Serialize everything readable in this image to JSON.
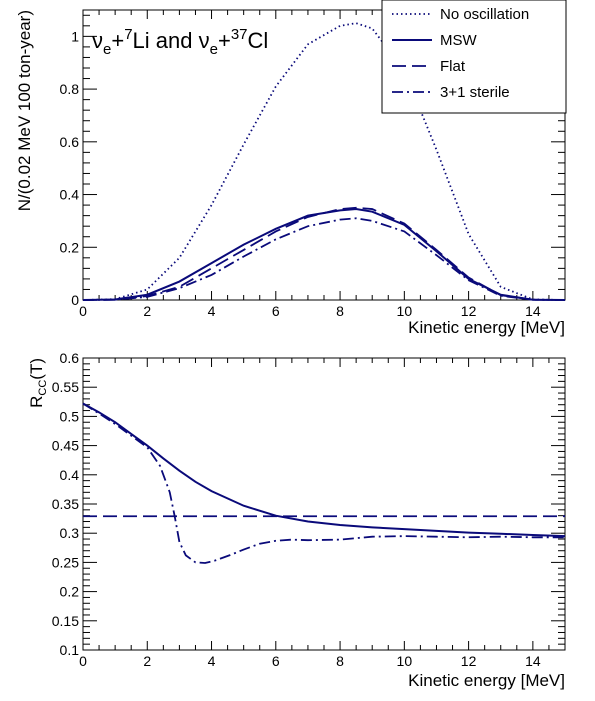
{
  "colors": {
    "line": "#0a0a7a",
    "frame": "#000000",
    "background": "#ffffff"
  },
  "chart_data": [
    {
      "type": "line",
      "title_parts": [
        "ν",
        "e",
        "+",
        "7",
        "Li and ",
        "ν",
        "e",
        "+",
        "37",
        "Cl"
      ],
      "xlabel": "Kinetic energy [MeV]",
      "ylabel": "N/(0.02 MeV 100 ton-year)",
      "xlim": [
        0,
        15
      ],
      "ylim": [
        0,
        1.1
      ],
      "xticks": [
        "0",
        "2",
        "4",
        "6",
        "8",
        "10",
        "12",
        "14"
      ],
      "yticks": [
        "0",
        "0.2",
        "0.4",
        "0.6",
        "0.8",
        "1"
      ],
      "legend_position": "top-right",
      "x": [
        0,
        1,
        2,
        3,
        4,
        5,
        6,
        7,
        8,
        8.5,
        9,
        10,
        11,
        12,
        13,
        14,
        15
      ],
      "series": [
        {
          "name": "No oscillation",
          "style": "dotted",
          "values": [
            0,
            0.003,
            0.04,
            0.16,
            0.36,
            0.59,
            0.81,
            0.97,
            1.04,
            1.05,
            1.03,
            0.87,
            0.57,
            0.25,
            0.05,
            0.002,
            0
          ]
        },
        {
          "name": "MSW",
          "style": "solid",
          "values": [
            0,
            0.002,
            0.02,
            0.07,
            0.14,
            0.21,
            0.27,
            0.32,
            0.34,
            0.345,
            0.335,
            0.285,
            0.185,
            0.08,
            0.02,
            0.001,
            0
          ]
        },
        {
          "name": "Flat",
          "style": "dashed",
          "values": [
            0,
            0.001,
            0.015,
            0.05,
            0.12,
            0.19,
            0.26,
            0.315,
            0.345,
            0.35,
            0.345,
            0.29,
            0.19,
            0.085,
            0.018,
            0.001,
            0
          ]
        },
        {
          "name": "3+1 sterile",
          "style": "dashdot",
          "values": [
            0,
            0.001,
            0.012,
            0.045,
            0.095,
            0.165,
            0.23,
            0.28,
            0.305,
            0.31,
            0.3,
            0.26,
            0.17,
            0.075,
            0.016,
            0.001,
            0
          ]
        }
      ]
    },
    {
      "type": "line",
      "xlabel": "Kinetic energy [MeV]",
      "ylabel_main": "R",
      "ylabel_sub": "CC",
      "ylabel_tail": "(T)",
      "xlim": [
        0,
        15
      ],
      "ylim": [
        0.1,
        0.6
      ],
      "xticks": [
        "0",
        "2",
        "4",
        "6",
        "8",
        "10",
        "12",
        "14"
      ],
      "yticks": [
        "0.1",
        "0.15",
        "0.2",
        "0.25",
        "0.3",
        "0.35",
        "0.4",
        "0.45",
        "0.5",
        "0.55",
        "0.6"
      ],
      "series": [
        {
          "style": "solid",
          "x": [
            0,
            0.5,
            1,
            1.5,
            2,
            2.5,
            3,
            3.5,
            4,
            5,
            6,
            7,
            8,
            9,
            10,
            11,
            12,
            13,
            14,
            15
          ],
          "values": [
            0.522,
            0.507,
            0.49,
            0.47,
            0.45,
            0.428,
            0.407,
            0.388,
            0.372,
            0.347,
            0.33,
            0.32,
            0.314,
            0.31,
            0.307,
            0.304,
            0.301,
            0.299,
            0.297,
            0.295
          ]
        },
        {
          "style": "dashed",
          "x": [
            0,
            15
          ],
          "values": [
            0.329,
            0.329
          ]
        },
        {
          "style": "dashdot",
          "x": [
            0,
            0.5,
            1,
            1.5,
            2,
            2.4,
            2.7,
            2.85,
            3,
            3.2,
            3.5,
            3.8,
            4.1,
            4.6,
            5,
            5.5,
            6,
            6.5,
            7,
            8,
            9,
            10,
            11,
            12,
            13,
            14,
            15
          ],
          "values": [
            0.522,
            0.505,
            0.487,
            0.467,
            0.447,
            0.415,
            0.37,
            0.33,
            0.285,
            0.262,
            0.25,
            0.249,
            0.253,
            0.263,
            0.272,
            0.282,
            0.287,
            0.289,
            0.288,
            0.289,
            0.294,
            0.295,
            0.294,
            0.293,
            0.294,
            0.293,
            0.293
          ]
        }
      ]
    }
  ]
}
